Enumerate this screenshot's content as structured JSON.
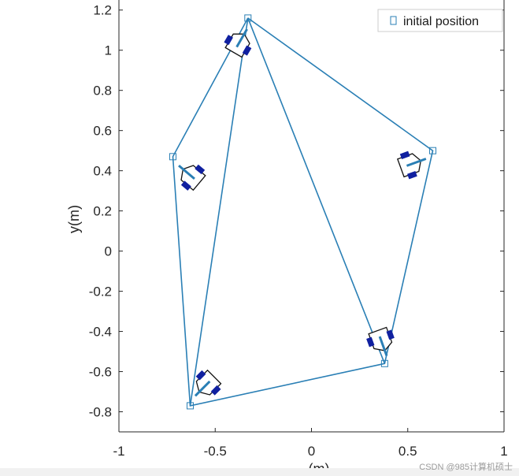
{
  "chart_data": {
    "type": "line",
    "title": "",
    "xlabel": "(m)",
    "ylabel": "y(m)",
    "xlim": [
      -1,
      1
    ],
    "ylim": [
      -0.9,
      1.25
    ],
    "x_ticks": [
      -1,
      -0.5,
      0,
      0.5,
      1
    ],
    "x_tick_labels": [
      "-1",
      "-0.5",
      "0",
      "0.5",
      "1"
    ],
    "y_ticks": [
      -0.8,
      -0.6,
      -0.4,
      -0.2,
      0,
      0.2,
      0.4,
      0.6,
      0.8,
      1,
      1.2
    ],
    "y_tick_labels": [
      "-0.8",
      "-0.6",
      "-0.4",
      "-0.2",
      "0",
      "0.2",
      "0.4",
      "0.6",
      "0.8",
      "1",
      "1.2"
    ],
    "grid": false,
    "legend": {
      "placement": "top-right",
      "entries": [
        "initial position"
      ]
    },
    "line_color": "#2a7fb5",
    "robot_wheel_color": "#1020a0",
    "initial_positions": [
      {
        "x": -0.33,
        "y": 1.16
      },
      {
        "x": -0.72,
        "y": 0.47
      },
      {
        "x": -0.63,
        "y": -0.77
      },
      {
        "x": 0.38,
        "y": -0.56
      },
      {
        "x": 0.63,
        "y": 0.5
      }
    ],
    "robot_positions": [
      {
        "x": -0.38,
        "y": 1.03,
        "heading_deg": 60
      },
      {
        "x": -0.62,
        "y": 0.37,
        "heading_deg": 140
      },
      {
        "x": -0.54,
        "y": -0.66,
        "heading_deg": 225
      },
      {
        "x": 0.36,
        "y": -0.44,
        "heading_deg": 290
      },
      {
        "x": 0.51,
        "y": 0.43,
        "heading_deg": 20
      }
    ],
    "trajectories": [
      {
        "name": "",
        "points": [
          [
            -0.33,
            1.16
          ],
          [
            0.63,
            0.5
          ],
          [
            0.38,
            -0.56
          ],
          [
            -0.63,
            -0.77
          ],
          [
            -0.72,
            0.47
          ],
          [
            -0.33,
            1.16
          ]
        ]
      },
      {
        "name": "",
        "points": [
          [
            -0.33,
            1.16
          ],
          [
            0.38,
            -0.56
          ]
        ]
      },
      {
        "name": "",
        "points": [
          [
            -0.33,
            1.16
          ],
          [
            -0.63,
            -0.77
          ]
        ]
      }
    ]
  },
  "watermark": "CSDN @985计算机硕士"
}
